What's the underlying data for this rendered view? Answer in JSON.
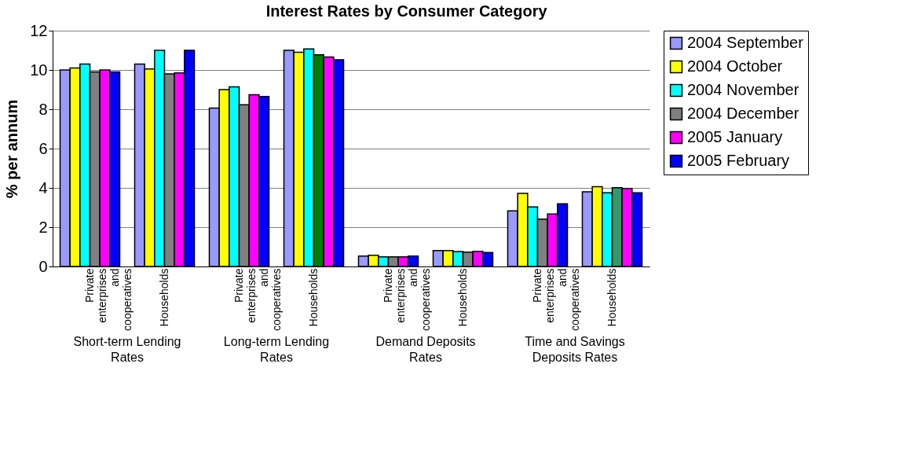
{
  "chart_data": {
    "type": "bar",
    "title": "Interest Rates by Consumer Category",
    "ylabel": "% per annum",
    "categories": [
      "Private enterprises and cooperatives",
      "Households",
      "Private enterprises and cooperatives",
      "Households",
      "Private enterprises and cooperatives",
      "Households",
      "Private enterprises and cooperatives",
      "Households"
    ],
    "annotations": [
      "Short-term Lending Rates",
      "Long-term Lending Rates",
      "Demand Deposits Rates",
      "Time and Savings Deposits Rates"
    ],
    "series": [
      {
        "name": "2004 September",
        "color": "#9999ff",
        "values": [
          10.0,
          10.3,
          8.06,
          11.0,
          0.53,
          0.81,
          2.83,
          3.8
        ]
      },
      {
        "name": "2004 October",
        "color": "#ffff00",
        "values": [
          10.1,
          10.05,
          9.0,
          10.9,
          0.57,
          0.81,
          3.72,
          4.06
        ]
      },
      {
        "name": "2004 November",
        "color": "#00ffff",
        "values": [
          10.3,
          11.0,
          9.14,
          11.07,
          0.49,
          0.76,
          3.03,
          3.75
        ]
      },
      {
        "name": "2004 December",
        "color": "#808080",
        "colors": [
          "#808080",
          "#808080",
          "#808080",
          "#008000",
          "#808080",
          "#808080",
          "#808080",
          "#339966"
        ],
        "values": [
          9.9,
          9.8,
          8.23,
          10.77,
          0.49,
          0.73,
          2.41,
          4.01
        ]
      },
      {
        "name": "2005 January",
        "color": "#ff00ff",
        "values": [
          10.0,
          9.85,
          8.74,
          10.66,
          0.49,
          0.77,
          2.67,
          3.97
        ]
      },
      {
        "name": "2005 February",
        "color": "#0000ff",
        "values": [
          9.9,
          11.0,
          8.65,
          10.52,
          0.53,
          0.71,
          3.19,
          3.75
        ]
      }
    ],
    "ylim": [
      0,
      12
    ],
    "yticks": [
      0,
      2,
      4,
      6,
      8,
      10,
      12
    ],
    "grid": "y",
    "legend": "right"
  }
}
